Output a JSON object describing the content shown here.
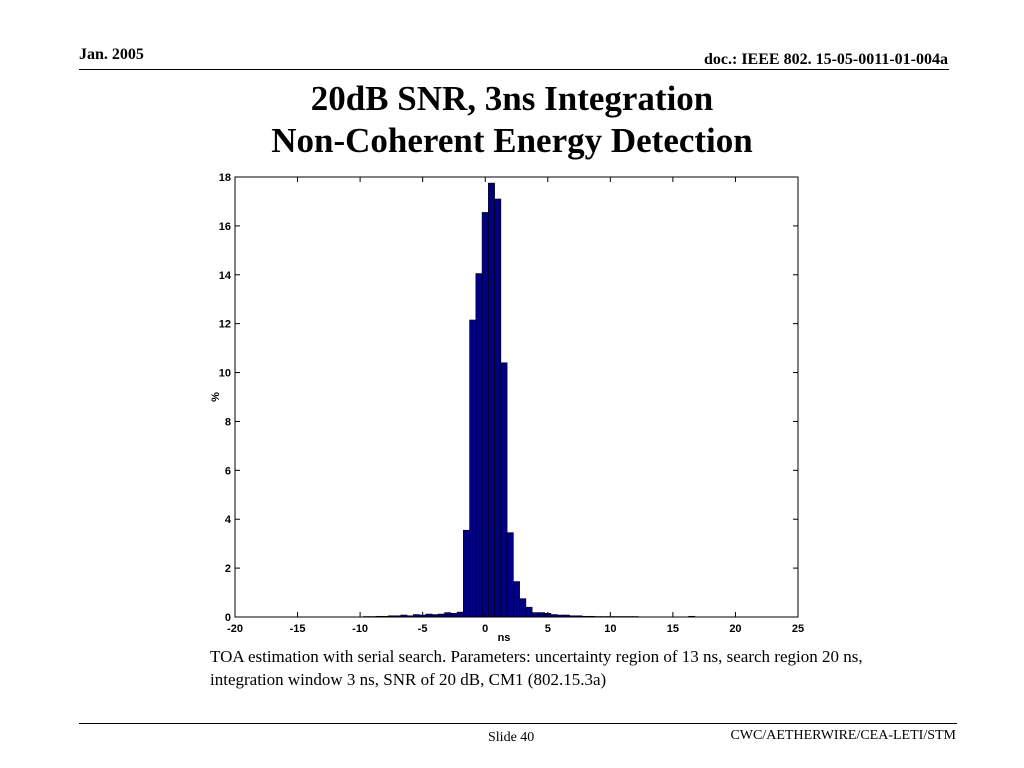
{
  "header": {
    "date": "Jan. 2005",
    "doc": "doc.: IEEE 802. 15-05-0011-01-004a"
  },
  "title": {
    "line1": "20dB SNR, 3ns Integration",
    "line2": "Non-Coherent Energy Detection"
  },
  "caption": {
    "line1": "TOA estimation with serial search. Parameters: uncertainty region of 13 ns, search region 20 ns,",
    "line2": "integration window 3 ns, SNR of 20 dB, CM1 (802.15.3a)"
  },
  "footer": {
    "slide": "Slide 40",
    "org": "CWC/AETHERWIRE/CEA-LETI/STM"
  },
  "chart_data": {
    "type": "bar",
    "title": "",
    "xlabel": "ns",
    "ylabel": "%",
    "xlim": [
      -20,
      25
    ],
    "ylim": [
      0,
      18
    ],
    "xticks": [
      -20,
      -15,
      -10,
      -5,
      0,
      5,
      10,
      15,
      20,
      25
    ],
    "yticks": [
      0,
      2,
      4,
      6,
      8,
      10,
      12,
      14,
      16,
      18
    ],
    "bin_width": 0.5,
    "bar_color": "#000080",
    "grid": false,
    "x": [
      -9.5,
      -9.0,
      -8.5,
      -8.0,
      -7.5,
      -7.0,
      -6.5,
      -6.0,
      -5.5,
      -5.0,
      -4.5,
      -4.0,
      -3.5,
      -3.0,
      -2.5,
      -2.0,
      -1.5,
      -1.0,
      -0.5,
      0.0,
      0.5,
      1.0,
      1.5,
      2.0,
      2.5,
      3.0,
      3.5,
      4.0,
      4.5,
      5.0,
      5.5,
      6.0,
      6.5,
      7.0,
      7.5,
      8.0,
      8.5,
      9.0,
      9.5,
      10.0,
      10.5,
      11.0,
      11.5,
      12.0,
      16.5
    ],
    "values": [
      0.02,
      0.02,
      0.03,
      0.03,
      0.05,
      0.05,
      0.08,
      0.05,
      0.1,
      0.08,
      0.12,
      0.1,
      0.12,
      0.18,
      0.15,
      0.2,
      3.55,
      12.15,
      14.05,
      16.55,
      17.75,
      17.1,
      10.4,
      3.45,
      1.45,
      0.75,
      0.4,
      0.18,
      0.18,
      0.15,
      0.1,
      0.08,
      0.08,
      0.05,
      0.05,
      0.03,
      0.03,
      0.02,
      0.02,
      0.02,
      0.02,
      0.02,
      0.02,
      0.02,
      0.03
    ]
  }
}
